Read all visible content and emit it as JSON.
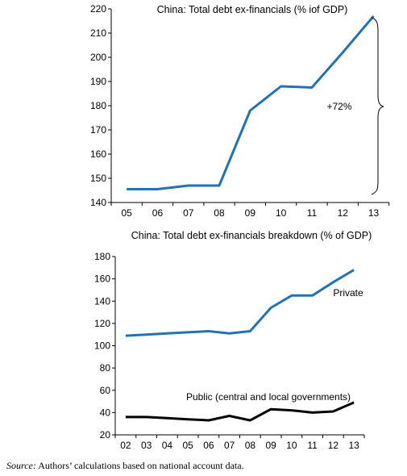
{
  "chart_data": [
    {
      "type": "line",
      "title": "China: Total debt ex-financials (% iof GDP)",
      "xlabel": "",
      "ylabel": "",
      "categories": [
        "05",
        "06",
        "07",
        "08",
        "09",
        "10",
        "11",
        "12",
        "13"
      ],
      "series": [
        {
          "values": [
            145.5,
            145.5,
            147,
            147,
            178,
            188,
            187.5,
            202,
            217
          ],
          "color": "#2472b5"
        }
      ],
      "ylim": [
        140,
        220
      ],
      "yticks": [
        140,
        150,
        160,
        170,
        180,
        190,
        200,
        210,
        220
      ],
      "grid": false,
      "annotations": [
        {
          "text": "+72%"
        }
      ]
    },
    {
      "type": "line",
      "title": "China: Total debt ex-financials breakdown  (% of GDP)",
      "xlabel": "",
      "ylabel": "",
      "categories": [
        "02",
        "03",
        "04",
        "05",
        "06",
        "07",
        "08",
        "09",
        "10",
        "11",
        "12",
        "13"
      ],
      "series": [
        {
          "name": "Private",
          "values": [
            109,
            110,
            111,
            112,
            113,
            111,
            113,
            134,
            145,
            145,
            157,
            168
          ],
          "color": "#2472b5"
        },
        {
          "name": "Public (central and local governments)",
          "values": [
            36,
            36,
            35,
            34,
            33,
            37,
            33,
            43,
            42,
            40,
            41,
            49
          ],
          "color": "#000000"
        }
      ],
      "ylim": [
        20,
        180
      ],
      "yticks": [
        20,
        40,
        60,
        80,
        100,
        120,
        140,
        160,
        180
      ],
      "grid": false
    }
  ],
  "source": {
    "lead": "Source:",
    "text": "Authors’ calculations based on national account data."
  }
}
